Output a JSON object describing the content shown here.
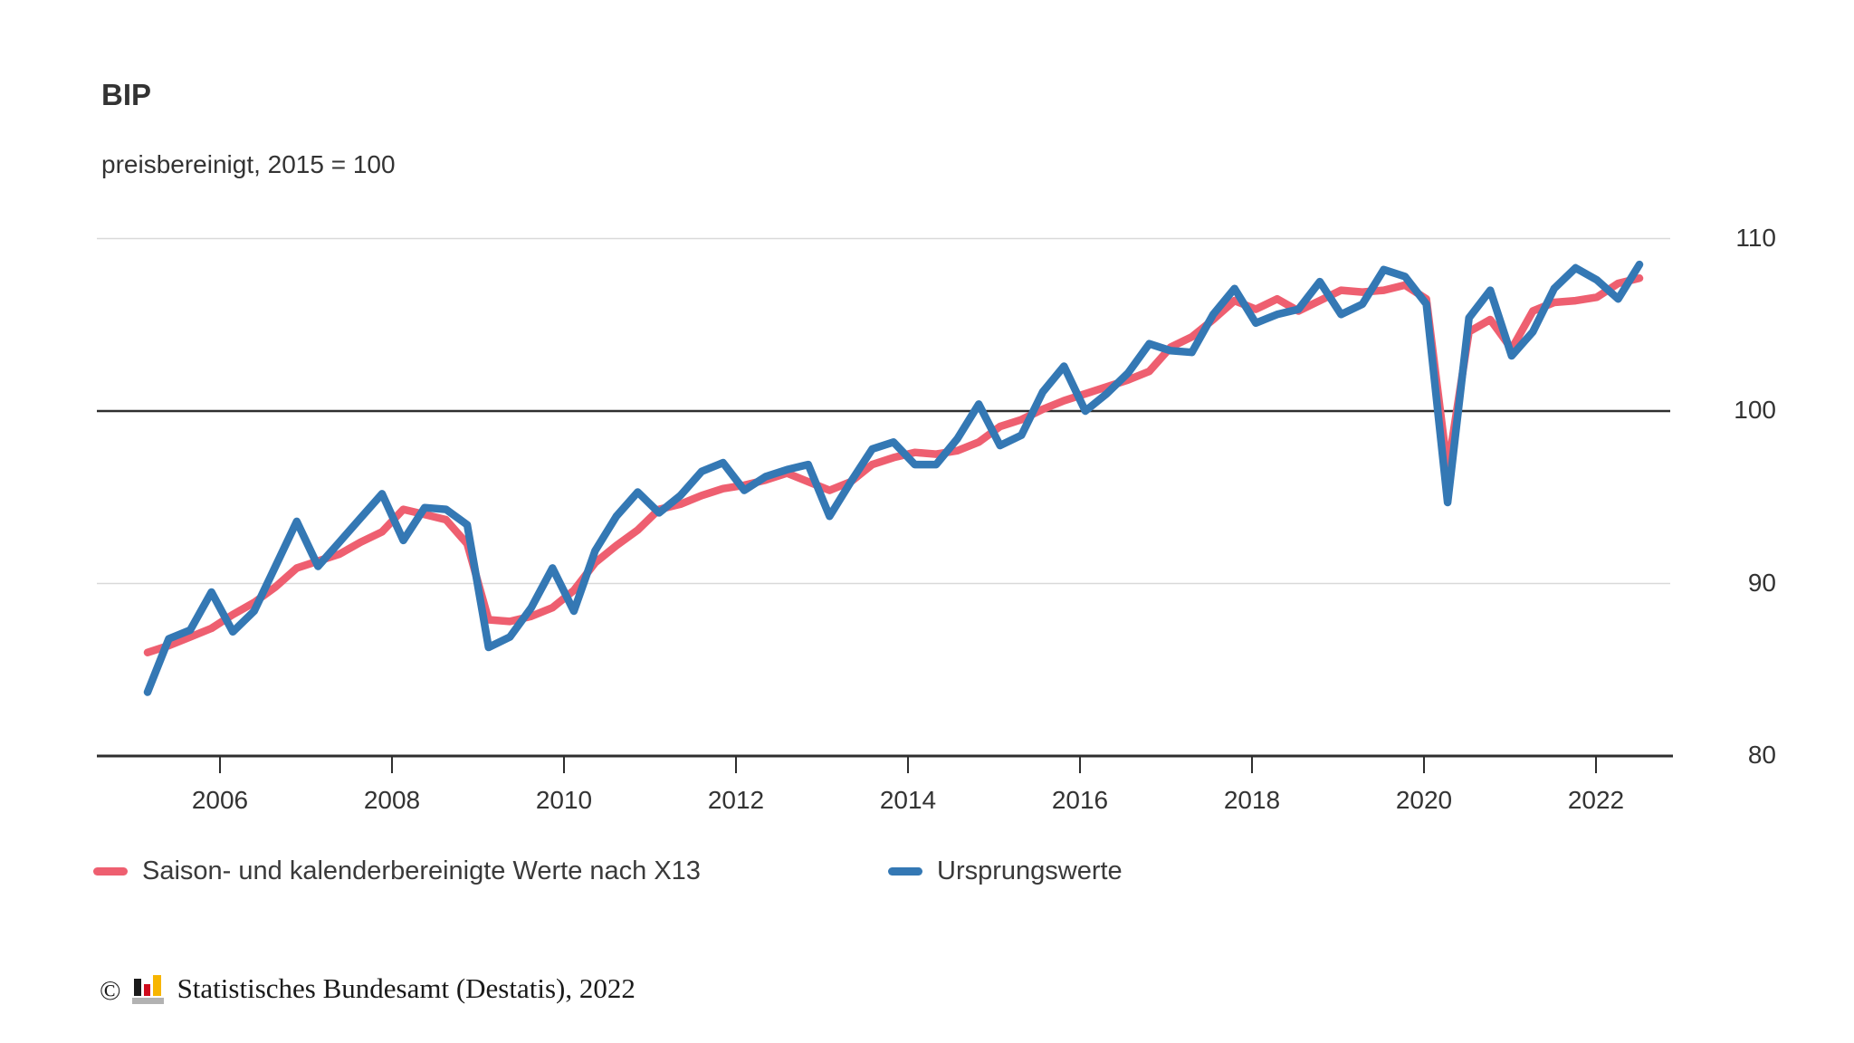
{
  "page": {
    "title": "BIP",
    "subtitle": "preisbereinigt, 2015 = 100"
  },
  "chart_data": {
    "type": "line",
    "title": "BIP",
    "subtitle": "preisbereinigt, 2015 = 100",
    "frequency": "quarterly",
    "period_start": "2005-Q1",
    "period_end": "2022-Q3",
    "unit": "Index, 2015 = 100",
    "ylim": [
      80,
      110
    ],
    "y_ticks": [
      80,
      90,
      100,
      110
    ],
    "x_tick_years": [
      2006,
      2008,
      2010,
      2012,
      2014,
      2016,
      2018,
      2020,
      2022
    ],
    "baseline": 100,
    "grid": "horizontal",
    "legend_position": "bottom",
    "series": [
      {
        "name": "Saison- und kalenderbereinigte Werte nach X13",
        "color": "#ee5f70",
        "values": [
          86.0,
          86.4,
          86.9,
          87.4,
          88.2,
          88.9,
          89.8,
          90.9,
          91.3,
          91.7,
          92.4,
          93.0,
          94.3,
          94.0,
          93.7,
          92.3,
          87.9,
          87.8,
          88.1,
          88.6,
          89.6,
          91.2,
          92.2,
          93.1,
          94.3,
          94.6,
          95.1,
          95.5,
          95.7,
          96.0,
          96.4,
          95.9,
          95.4,
          95.9,
          96.9,
          97.3,
          97.6,
          97.5,
          97.7,
          98.2,
          99.1,
          99.5,
          100.1,
          100.6,
          101.0,
          101.4,
          101.8,
          102.3,
          103.7,
          104.3,
          105.3,
          106.4,
          105.9,
          106.5,
          105.8,
          106.4,
          107.0,
          106.9,
          107.0,
          107.3,
          106.5,
          96.6,
          104.6,
          105.3,
          103.6,
          105.8,
          106.3,
          106.4,
          106.6,
          107.4,
          107.7
        ]
      },
      {
        "name": "Ursprungswerte",
        "color": "#3478b4",
        "values": [
          83.7,
          86.8,
          87.3,
          89.5,
          87.2,
          88.4,
          91.0,
          93.6,
          91.0,
          92.4,
          93.8,
          95.2,
          92.5,
          94.4,
          94.3,
          93.4,
          86.3,
          86.9,
          88.6,
          90.9,
          88.4,
          91.9,
          93.9,
          95.3,
          94.1,
          95.1,
          96.5,
          97.0,
          95.4,
          96.2,
          96.6,
          96.9,
          93.9,
          95.9,
          97.8,
          98.2,
          96.9,
          96.9,
          98.4,
          100.4,
          98.0,
          98.6,
          101.1,
          102.6,
          100.0,
          101.0,
          102.2,
          103.9,
          103.5,
          103.4,
          105.6,
          107.1,
          105.1,
          105.6,
          105.9,
          107.5,
          105.6,
          106.2,
          108.2,
          107.8,
          106.2,
          94.7,
          105.4,
          107.0,
          103.2,
          104.6,
          107.1,
          108.3,
          107.6,
          106.5,
          108.5
        ]
      }
    ]
  },
  "footer": {
    "copyright_symbol": "©",
    "source_text": "Statistisches Bundesamt (Destatis), 2022"
  }
}
